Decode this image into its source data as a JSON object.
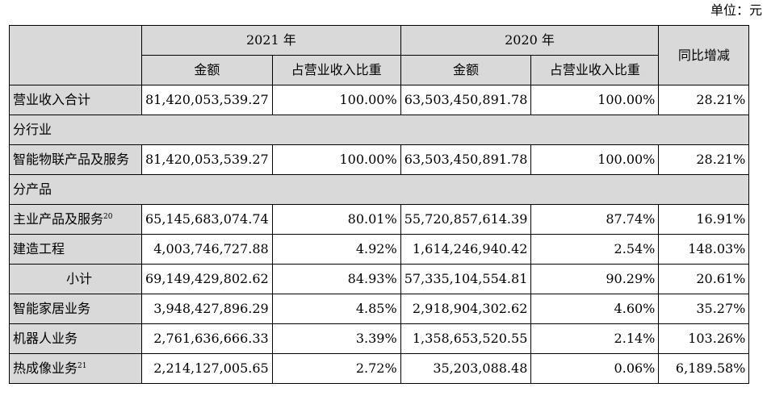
{
  "unit": "单位：元",
  "header": {
    "year_2021": "2021 年",
    "year_2020": "2020 年",
    "amount": "金额",
    "ratio": "占营业收入比重",
    "yoy": "同比增减"
  },
  "rows": [
    {
      "label": "营业收入合计",
      "sup": "",
      "a2021": "81,420,053,539.27",
      "r2021": "100.00%",
      "a2020": "63,503,450,891.78",
      "r2020": "100.00%",
      "yoy": "28.21%"
    },
    {
      "section": "分行业"
    },
    {
      "label": "智能物联产品及服务",
      "sup": "",
      "a2021": "81,420,053,539.27",
      "r2021": "100.00%",
      "a2020": "63,503,450,891.78",
      "r2020": "100.00%",
      "yoy": "28.21%"
    },
    {
      "section": "分产品"
    },
    {
      "label": "主业产品及服务",
      "sup": "20",
      "a2021": "65,145,683,074.74",
      "r2021": "80.01%",
      "a2020": "55,720,857,614.39",
      "r2020": "87.74%",
      "yoy": "16.91%"
    },
    {
      "label": "建造工程",
      "sup": "",
      "a2021": "4,003,746,727.88",
      "r2021": "4.92%",
      "a2020": "1,614,246,940.42",
      "r2020": "2.54%",
      "yoy": "148.03%"
    },
    {
      "label": "小计",
      "sup": "",
      "indent": true,
      "a2021": "69,149,429,802.62",
      "r2021": "84.93%",
      "a2020": "57,335,104,554.81",
      "r2020": "90.29%",
      "yoy": "20.61%"
    },
    {
      "label": "智能家居业务",
      "sup": "",
      "a2021": "3,948,427,896.29",
      "r2021": "4.85%",
      "a2020": "2,918,904,302.62",
      "r2020": "4.60%",
      "yoy": "35.27%"
    },
    {
      "label": "机器人业务",
      "sup": "",
      "a2021": "2,761,636,666.33",
      "r2021": "3.39%",
      "a2020": "1,358,653,520.55",
      "r2020": "2.14%",
      "yoy": "103.26%"
    },
    {
      "label": "热成像业务",
      "sup": "21",
      "a2021": "2,214,127,005.65",
      "r2021": "2.72%",
      "a2020": "35,203,088.48",
      "r2020": "0.06%",
      "yoy": "6,189.58%"
    }
  ]
}
